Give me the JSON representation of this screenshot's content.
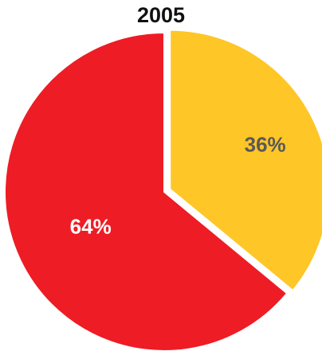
{
  "chart_data": {
    "type": "pie",
    "title": "2005",
    "slices": [
      {
        "label": "64%",
        "value": 64,
        "color": "#ee1c25",
        "label_color": "#ffffff"
      },
      {
        "label": "36%",
        "value": 36,
        "color": "#ffc628",
        "label_color": "#595959"
      }
    ]
  }
}
